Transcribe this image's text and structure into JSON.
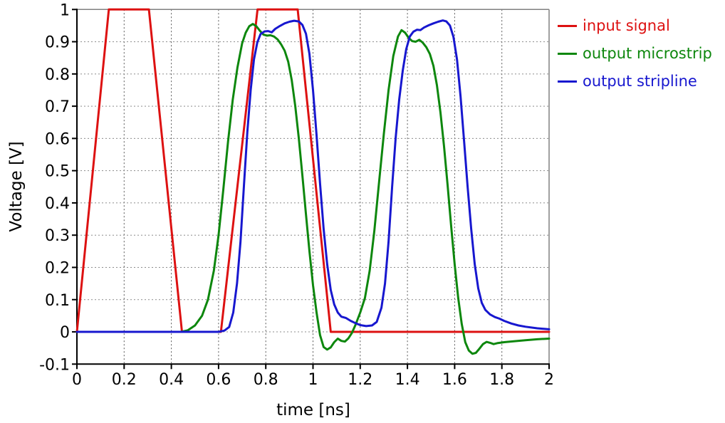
{
  "figure": {
    "x_axis_title": "time [ns]",
    "y_axis_title": "Voltage [V]"
  },
  "legend": {
    "items": [
      {
        "label": "input signal",
        "color": "#dd1111"
      },
      {
        "label": "output microstrip",
        "color": "#0d870d"
      },
      {
        "label": "output stripline",
        "color": "#1717cf"
      }
    ]
  },
  "style_colors": {
    "background": "#ffffff",
    "axis": "#000000",
    "border_top_right": "#808080",
    "grid_vertical": "#555555",
    "grid_horizontal": "#8c8c8c"
  },
  "chart_data": {
    "type": "line",
    "title": "",
    "xlabel": "time [ns]",
    "ylabel": "Voltage [V]",
    "xlim": [
      0,
      2
    ],
    "ylim": [
      -0.1,
      1
    ],
    "grid": true,
    "legend_position": "outside-top-right",
    "x_ticks": [
      0,
      0.2,
      0.4,
      0.6,
      0.8,
      1,
      1.2,
      1.4,
      1.6,
      1.8,
      2
    ],
    "x_tick_labels": [
      "0",
      "0.2",
      "0.4",
      "0.6",
      "0.8",
      "1",
      "1.2",
      "1.4",
      "1.6",
      "1.8",
      "2"
    ],
    "y_ticks": [
      1,
      0.9,
      0.8,
      0.7,
      0.6,
      0.5,
      0.4,
      0.3,
      0.2,
      0.1,
      0,
      -0.1
    ],
    "y_tick_labels": [
      "1",
      "0.9",
      "0.8",
      "0.7",
      "0.6",
      "0.5",
      "0.4",
      "0.3",
      "0.2",
      "0.1",
      "0",
      "-0.1"
    ],
    "series": [
      {
        "name": "input signal",
        "color": "#dd1111",
        "points": [
          [
            0,
            0
          ],
          [
            0.135,
            1
          ],
          [
            0.305,
            1
          ],
          [
            0.445,
            0
          ],
          [
            0.61,
            0
          ],
          [
            0.765,
            1
          ],
          [
            0.935,
            1
          ],
          [
            1.075,
            0
          ],
          [
            2,
            0
          ]
        ]
      },
      {
        "name": "output microstrip",
        "color": "#0d870d",
        "points": [
          [
            0,
            0
          ],
          [
            0.44,
            0
          ],
          [
            0.47,
            0.005
          ],
          [
            0.5,
            0.02
          ],
          [
            0.53,
            0.05
          ],
          [
            0.555,
            0.1
          ],
          [
            0.58,
            0.19
          ],
          [
            0.6,
            0.3
          ],
          [
            0.62,
            0.44
          ],
          [
            0.64,
            0.59
          ],
          [
            0.66,
            0.72
          ],
          [
            0.68,
            0.82
          ],
          [
            0.7,
            0.895
          ],
          [
            0.715,
            0.928
          ],
          [
            0.73,
            0.948
          ],
          [
            0.745,
            0.955
          ],
          [
            0.76,
            0.948
          ],
          [
            0.775,
            0.934
          ],
          [
            0.79,
            0.922
          ],
          [
            0.805,
            0.919
          ],
          [
            0.82,
            0.92
          ],
          [
            0.835,
            0.916
          ],
          [
            0.85,
            0.907
          ],
          [
            0.865,
            0.892
          ],
          [
            0.88,
            0.872
          ],
          [
            0.895,
            0.838
          ],
          [
            0.91,
            0.78
          ],
          [
            0.925,
            0.7
          ],
          [
            0.94,
            0.6
          ],
          [
            0.955,
            0.485
          ],
          [
            0.97,
            0.365
          ],
          [
            0.985,
            0.25
          ],
          [
            1.0,
            0.145
          ],
          [
            1.015,
            0.06
          ],
          [
            1.03,
            -0.01
          ],
          [
            1.045,
            -0.047
          ],
          [
            1.06,
            -0.055
          ],
          [
            1.075,
            -0.048
          ],
          [
            1.09,
            -0.032
          ],
          [
            1.105,
            -0.021
          ],
          [
            1.12,
            -0.028
          ],
          [
            1.135,
            -0.03
          ],
          [
            1.15,
            -0.02
          ],
          [
            1.165,
            -0.003
          ],
          [
            1.18,
            0.022
          ],
          [
            1.2,
            0.06
          ],
          [
            1.22,
            0.105
          ],
          [
            1.24,
            0.19
          ],
          [
            1.26,
            0.315
          ],
          [
            1.28,
            0.465
          ],
          [
            1.3,
            0.615
          ],
          [
            1.32,
            0.75
          ],
          [
            1.34,
            0.855
          ],
          [
            1.36,
            0.916
          ],
          [
            1.375,
            0.936
          ],
          [
            1.39,
            0.928
          ],
          [
            1.405,
            0.912
          ],
          [
            1.42,
            0.902
          ],
          [
            1.435,
            0.9
          ],
          [
            1.45,
            0.906
          ],
          [
            1.465,
            0.897
          ],
          [
            1.48,
            0.883
          ],
          [
            1.495,
            0.862
          ],
          [
            1.51,
            0.825
          ],
          [
            1.525,
            0.765
          ],
          [
            1.54,
            0.68
          ],
          [
            1.555,
            0.575
          ],
          [
            1.57,
            0.455
          ],
          [
            1.585,
            0.33
          ],
          [
            1.6,
            0.21
          ],
          [
            1.615,
            0.105
          ],
          [
            1.63,
            0.025
          ],
          [
            1.645,
            -0.032
          ],
          [
            1.66,
            -0.058
          ],
          [
            1.675,
            -0.068
          ],
          [
            1.69,
            -0.065
          ],
          [
            1.705,
            -0.052
          ],
          [
            1.72,
            -0.038
          ],
          [
            1.735,
            -0.031
          ],
          [
            1.75,
            -0.034
          ],
          [
            1.765,
            -0.038
          ],
          [
            1.78,
            -0.035
          ],
          [
            1.81,
            -0.032
          ],
          [
            1.85,
            -0.029
          ],
          [
            1.9,
            -0.026
          ],
          [
            1.95,
            -0.023
          ],
          [
            2,
            -0.021
          ]
        ]
      },
      {
        "name": "output stripline",
        "color": "#1717cf",
        "points": [
          [
            0,
            0
          ],
          [
            0.6,
            0
          ],
          [
            0.625,
            0.004
          ],
          [
            0.645,
            0.015
          ],
          [
            0.662,
            0.06
          ],
          [
            0.678,
            0.15
          ],
          [
            0.693,
            0.28
          ],
          [
            0.708,
            0.46
          ],
          [
            0.722,
            0.62
          ],
          [
            0.736,
            0.75
          ],
          [
            0.75,
            0.845
          ],
          [
            0.764,
            0.898
          ],
          [
            0.778,
            0.924
          ],
          [
            0.795,
            0.932
          ],
          [
            0.81,
            0.933
          ],
          [
            0.825,
            0.929
          ],
          [
            0.84,
            0.94
          ],
          [
            0.86,
            0.949
          ],
          [
            0.88,
            0.957
          ],
          [
            0.9,
            0.962
          ],
          [
            0.92,
            0.965
          ],
          [
            0.94,
            0.963
          ],
          [
            0.955,
            0.952
          ],
          [
            0.97,
            0.925
          ],
          [
            0.985,
            0.862
          ],
          [
            1.0,
            0.75
          ],
          [
            1.015,
            0.61
          ],
          [
            1.03,
            0.46
          ],
          [
            1.045,
            0.32
          ],
          [
            1.06,
            0.21
          ],
          [
            1.075,
            0.13
          ],
          [
            1.09,
            0.085
          ],
          [
            1.105,
            0.06
          ],
          [
            1.12,
            0.047
          ],
          [
            1.14,
            0.043
          ],
          [
            1.16,
            0.034
          ],
          [
            1.18,
            0.027
          ],
          [
            1.2,
            0.021
          ],
          [
            1.225,
            0.018
          ],
          [
            1.25,
            0.02
          ],
          [
            1.27,
            0.031
          ],
          [
            1.29,
            0.075
          ],
          [
            1.305,
            0.15
          ],
          [
            1.32,
            0.28
          ],
          [
            1.335,
            0.45
          ],
          [
            1.35,
            0.6
          ],
          [
            1.365,
            0.72
          ],
          [
            1.38,
            0.81
          ],
          [
            1.395,
            0.877
          ],
          [
            1.41,
            0.916
          ],
          [
            1.425,
            0.931
          ],
          [
            1.44,
            0.937
          ],
          [
            1.455,
            0.936
          ],
          [
            1.47,
            0.944
          ],
          [
            1.49,
            0.951
          ],
          [
            1.51,
            0.957
          ],
          [
            1.53,
            0.962
          ],
          [
            1.55,
            0.966
          ],
          [
            1.565,
            0.963
          ],
          [
            1.58,
            0.95
          ],
          [
            1.595,
            0.915
          ],
          [
            1.61,
            0.845
          ],
          [
            1.625,
            0.73
          ],
          [
            1.64,
            0.59
          ],
          [
            1.655,
            0.45
          ],
          [
            1.67,
            0.32
          ],
          [
            1.685,
            0.21
          ],
          [
            1.7,
            0.135
          ],
          [
            1.715,
            0.09
          ],
          [
            1.73,
            0.068
          ],
          [
            1.75,
            0.054
          ],
          [
            1.77,
            0.046
          ],
          [
            1.79,
            0.041
          ],
          [
            1.81,
            0.034
          ],
          [
            1.84,
            0.026
          ],
          [
            1.87,
            0.02
          ],
          [
            1.9,
            0.016
          ],
          [
            1.95,
            0.011
          ],
          [
            2,
            0.008
          ]
        ]
      }
    ]
  }
}
